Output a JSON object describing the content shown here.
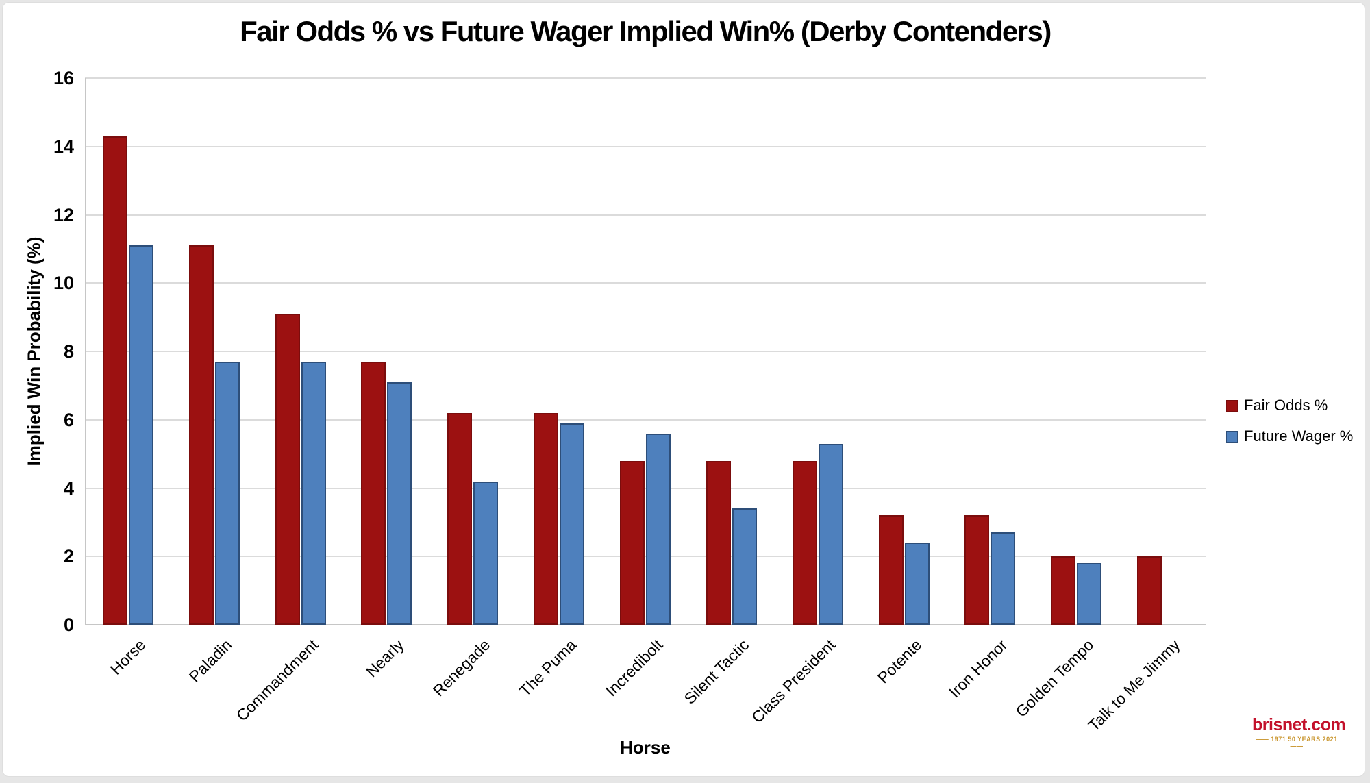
{
  "window": {
    "background_color": "#e6e6e6",
    "card_background_color": "#ffffff"
  },
  "chart_data": {
    "type": "bar",
    "title": "Fair Odds % vs Future Wager Implied Win% (Derby Contenders)",
    "xlabel": "Horse",
    "ylabel": "Implied Win Probability (%)",
    "ylim": [
      0,
      16
    ],
    "yticks": [
      0,
      2,
      4,
      6,
      8,
      10,
      12,
      14,
      16
    ],
    "grid": true,
    "legend_position": "right",
    "categories": [
      "Horse",
      "Paladin",
      "Commandment",
      "Nearly",
      "Renegade",
      "The Puma",
      "Incredibolt",
      "Silent Tactic",
      "Class President",
      "Potente",
      "Iron Honor",
      "Golden Tempo",
      "Talk to Me Jimmy"
    ],
    "series": [
      {
        "name": "Fair Odds %",
        "color": "#9C1111",
        "border_color": "#7B0D0D",
        "values": [
          14.3,
          11.1,
          9.1,
          7.7,
          6.2,
          6.2,
          4.8,
          4.8,
          4.8,
          3.2,
          3.2,
          2.0,
          2.0
        ]
      },
      {
        "name": "Future Wager %",
        "color": "#4E80BD",
        "border_color": "#2D4E79",
        "values": [
          11.1,
          7.7,
          7.7,
          7.1,
          4.2,
          5.9,
          5.6,
          3.4,
          5.3,
          2.4,
          2.7,
          1.8,
          null
        ]
      }
    ]
  },
  "branding": {
    "logo_text": "brisnet.com",
    "logo_tagline": "—— 1971  50 YEARS  2021 ——",
    "logo_color": "#C3112B",
    "tagline_color": "#C9952D"
  }
}
